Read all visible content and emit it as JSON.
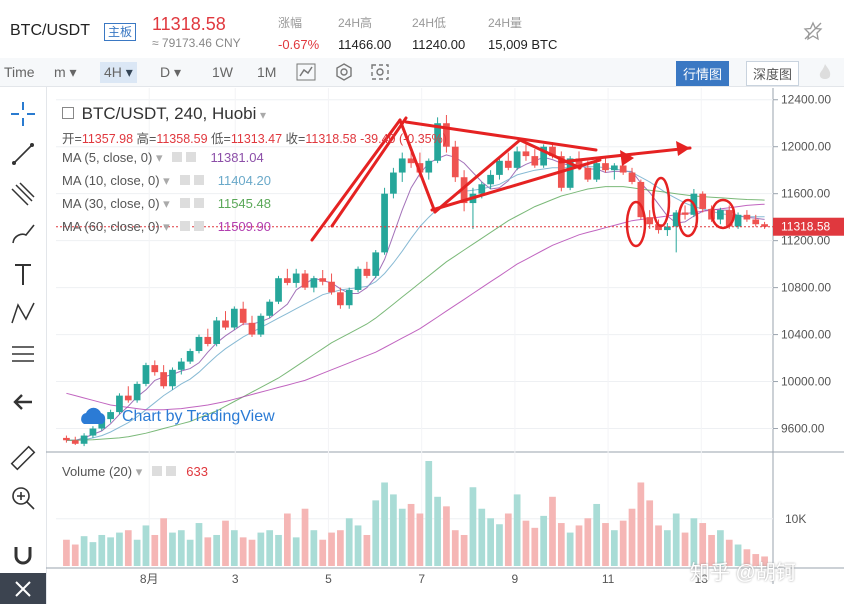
{
  "header": {
    "symbol": "BTC/USDT",
    "badge": "主板",
    "last_price": "11318.58",
    "cny": "≈ 79173.46 CNY",
    "stats": [
      {
        "label": "涨幅",
        "value": "-0.67%",
        "red": true
      },
      {
        "label": "24H高",
        "value": "11466.00"
      },
      {
        "label": "24H低",
        "value": "11240.00"
      },
      {
        "label": "24H量",
        "value": "15,009 BTC"
      }
    ]
  },
  "toolbar": {
    "time_label": "Time",
    "items": [
      "m",
      "4H",
      "D",
      "1W",
      "1M"
    ],
    "selected": "4H",
    "view_buttons": [
      "行情图",
      "深度图"
    ]
  },
  "chart_info": {
    "title": "BTC/USDT, 240, Huobi",
    "ohlc_labels": [
      "开=",
      "高=",
      "低=",
      "收="
    ],
    "ohlc_values": [
      "11357.98",
      "11358.59",
      "11313.47",
      "11318.58"
    ],
    "change": "-39.40 (-0.35%)",
    "ma": [
      {
        "label": "MA (5, close, 0)",
        "value": "11381.04",
        "color": "#8c4fa8"
      },
      {
        "label": "MA (10, close, 0)",
        "value": "11404.20",
        "color": "#6aa9c9"
      },
      {
        "label": "MA (30, close, 0)",
        "value": "11545.48",
        "color": "#5aa858"
      },
      {
        "label": "MA (60, close, 0)",
        "value": "11509.90",
        "color": "#b23fb0"
      }
    ],
    "volume_label": "Volume (20)",
    "volume_value": "633",
    "watermark": "Chart by TradingView",
    "zhihu": "知乎 @胡钶"
  },
  "chart_data": {
    "type": "candlestick",
    "price_axis": {
      "ticks": [
        "12400.00",
        "12000.00",
        "11600.00",
        "11200.00",
        "10800.00",
        "10400.00",
        "10000.00",
        "9600.00"
      ],
      "range": [
        9400,
        12500
      ]
    },
    "volume_axis": {
      "ticks": [
        "10K"
      ]
    },
    "x_labels": [
      "8月",
      "3",
      "5",
      "7",
      "9",
      "11",
      "13"
    ],
    "last_price_label": "11318.58",
    "colors": {
      "up": "#26a69a",
      "down": "#ef5350",
      "annotation": "#e52222"
    },
    "candles": [
      [
        9520,
        9540,
        9480,
        9500
      ],
      [
        9500,
        9530,
        9460,
        9470
      ],
      [
        9470,
        9560,
        9450,
        9540
      ],
      [
        9540,
        9620,
        9520,
        9600
      ],
      [
        9600,
        9700,
        9580,
        9680
      ],
      [
        9680,
        9760,
        9650,
        9740
      ],
      [
        9740,
        9900,
        9720,
        9880
      ],
      [
        9880,
        9960,
        9820,
        9840
      ],
      [
        9840,
        10000,
        9820,
        9980
      ],
      [
        9980,
        10160,
        9960,
        10140
      ],
      [
        10140,
        10180,
        10050,
        10080
      ],
      [
        10080,
        10140,
        9940,
        9960
      ],
      [
        9960,
        10120,
        9930,
        10100
      ],
      [
        10100,
        10200,
        10060,
        10170
      ],
      [
        10170,
        10280,
        10150,
        10260
      ],
      [
        10260,
        10400,
        10240,
        10380
      ],
      [
        10380,
        10450,
        10300,
        10320
      ],
      [
        10320,
        10550,
        10300,
        10520
      ],
      [
        10520,
        10600,
        10440,
        10460
      ],
      [
        10460,
        10640,
        10440,
        10620
      ],
      [
        10620,
        10680,
        10480,
        10500
      ],
      [
        10500,
        10560,
        10380,
        10400
      ],
      [
        10400,
        10580,
        10380,
        10560
      ],
      [
        10560,
        10700,
        10540,
        10680
      ],
      [
        10680,
        10900,
        10660,
        10880
      ],
      [
        10880,
        10960,
        10820,
        10840
      ],
      [
        10840,
        10960,
        10800,
        10920
      ],
      [
        10920,
        10950,
        10780,
        10800
      ],
      [
        10800,
        10900,
        10760,
        10880
      ],
      [
        10880,
        10950,
        10820,
        10850
      ],
      [
        10850,
        10920,
        10740,
        10760
      ],
      [
        10760,
        10800,
        10620,
        10650
      ],
      [
        10650,
        10800,
        10620,
        10780
      ],
      [
        10780,
        10980,
        10760,
        10960
      ],
      [
        10960,
        11020,
        10880,
        10900
      ],
      [
        10900,
        11120,
        10880,
        11100
      ],
      [
        11100,
        11650,
        11080,
        11600
      ],
      [
        11600,
        11820,
        11560,
        11780
      ],
      [
        11780,
        11950,
        11700,
        11900
      ],
      [
        11900,
        11960,
        11820,
        11860
      ],
      [
        11860,
        11950,
        11740,
        11780
      ],
      [
        11780,
        11900,
        11720,
        11880
      ],
      [
        11880,
        12250,
        11860,
        12200
      ],
      [
        12200,
        12270,
        11950,
        12000
      ],
      [
        12000,
        12050,
        11700,
        11740
      ],
      [
        11740,
        11800,
        11450,
        11520
      ],
      [
        11520,
        11650,
        11300,
        11600
      ],
      [
        11600,
        11700,
        11560,
        11680
      ],
      [
        11680,
        11800,
        11640,
        11760
      ],
      [
        11760,
        11900,
        11720,
        11880
      ],
      [
        11880,
        11950,
        11800,
        11820
      ],
      [
        11820,
        12000,
        11800,
        11960
      ],
      [
        11960,
        12020,
        11880,
        11920
      ],
      [
        11920,
        11980,
        11820,
        11840
      ],
      [
        11840,
        12020,
        11820,
        12000
      ],
      [
        12000,
        12040,
        11900,
        11920
      ],
      [
        11920,
        11960,
        11620,
        11650
      ],
      [
        11650,
        11920,
        11630,
        11900
      ],
      [
        11900,
        11960,
        11800,
        11820
      ],
      [
        11820,
        11880,
        11700,
        11720
      ],
      [
        11720,
        11880,
        11700,
        11860
      ],
      [
        11860,
        11900,
        11780,
        11800
      ],
      [
        11800,
        11860,
        11720,
        11840
      ],
      [
        11840,
        11880,
        11760,
        11780
      ],
      [
        11780,
        11820,
        11680,
        11700
      ],
      [
        11700,
        11720,
        11380,
        11400
      ],
      [
        11400,
        11460,
        11300,
        11340
      ],
      [
        11340,
        11380,
        11260,
        11290
      ],
      [
        11290,
        11350,
        11240,
        11320
      ],
      [
        11320,
        11460,
        11100,
        11440
      ],
      [
        11440,
        11500,
        11380,
        11420
      ],
      [
        11420,
        11640,
        11400,
        11600
      ],
      [
        11600,
        11620,
        11440,
        11470
      ],
      [
        11470,
        11500,
        11360,
        11380
      ],
      [
        11380,
        11480,
        11340,
        11460
      ],
      [
        11460,
        11500,
        11300,
        11320
      ],
      [
        11320,
        11440,
        11300,
        11420
      ],
      [
        11420,
        11460,
        11360,
        11380
      ],
      [
        11380,
        11420,
        11320,
        11340
      ],
      [
        11340,
        11360,
        11300,
        11318
      ]
    ],
    "volumes": [
      22,
      18,
      25,
      20,
      26,
      24,
      28,
      30,
      22,
      34,
      26,
      40,
      28,
      30,
      22,
      36,
      24,
      26,
      38,
      30,
      24,
      22,
      28,
      30,
      26,
      44,
      24,
      48,
      30,
      22,
      28,
      30,
      40,
      34,
      26,
      55,
      70,
      60,
      48,
      52,
      44,
      88,
      58,
      50,
      30,
      26,
      66,
      48,
      40,
      35,
      44,
      60,
      38,
      32,
      42,
      58,
      36,
      28,
      34,
      40,
      52,
      36,
      30,
      38,
      48,
      70,
      55,
      34,
      30,
      44,
      28,
      40,
      36,
      26,
      30,
      22,
      18,
      14,
      10,
      8
    ],
    "ma_series": [
      {
        "name": "MA (5, close, 0)",
        "color": "#8c4fa8",
        "values": [
          9500,
          9500,
          9520,
          9550,
          9580,
          9640,
          9720,
          9790,
          9870,
          9930,
          10010,
          10040,
          10060,
          10090,
          10110,
          10160,
          10250,
          10330,
          10390,
          10440,
          10490,
          10490,
          10510,
          10540,
          10600,
          10660,
          10780,
          10830,
          10880,
          10860,
          10840,
          10790,
          10750,
          10750,
          10800,
          10890,
          11040,
          11250,
          11460,
          11650,
          11770,
          11860,
          11900,
          11930,
          11910,
          11860,
          11780,
          11700,
          11640,
          11650,
          11710,
          11810,
          11850,
          11880,
          11910,
          11890,
          11860,
          11840,
          11850,
          11810,
          11810,
          11780,
          11790,
          11790,
          11790,
          11690,
          11610,
          11510,
          11410,
          11350,
          11360,
          11410,
          11450,
          11470,
          11460,
          11460,
          11410,
          11400,
          11390,
          11381
        ]
      },
      {
        "name": "MA (10, close, 0)",
        "color": "#6aa9c9",
        "values": [
          9500,
          9500,
          9505,
          9520,
          9540,
          9570,
          9610,
          9650,
          9700,
          9760,
          9820,
          9880,
          9930,
          9980,
          10020,
          10080,
          10150,
          10220,
          10280,
          10330,
          10380,
          10420,
          10460,
          10500,
          10540,
          10580,
          10620,
          10660,
          10700,
          10740,
          10760,
          10780,
          10790,
          10800,
          10810,
          10850,
          10920,
          11010,
          11110,
          11220,
          11320,
          11400,
          11470,
          11540,
          11590,
          11620,
          11630,
          11640,
          11660,
          11680,
          11720,
          11760,
          11780,
          11800,
          11810,
          11820,
          11820,
          11820,
          11830,
          11830,
          11830,
          11820,
          11810,
          11800,
          11780,
          11740,
          11700,
          11650,
          11600,
          11560,
          11520,
          11490,
          11470,
          11450,
          11430,
          11420,
          11410,
          11405,
          11404,
          11404
        ]
      },
      {
        "name": "MA (30, close, 0)",
        "color": "#5aa858",
        "values": [
          9500,
          9500,
          9502,
          9505,
          9510,
          9515,
          9520,
          9530,
          9545,
          9560,
          9580,
          9600,
          9620,
          9640,
          9660,
          9690,
          9720,
          9750,
          9790,
          9830,
          9870,
          9910,
          9950,
          9990,
          10030,
          10080,
          10130,
          10180,
          10230,
          10280,
          10330,
          10370,
          10410,
          10450,
          10490,
          10540,
          10600,
          10660,
          10720,
          10780,
          10840,
          10900,
          10960,
          11020,
          11070,
          11120,
          11170,
          11220,
          11270,
          11320,
          11370,
          11410,
          11450,
          11490,
          11520,
          11550,
          11580,
          11600,
          11620,
          11640,
          11650,
          11660,
          11660,
          11660,
          11650,
          11640,
          11630,
          11620,
          11610,
          11600,
          11590,
          11580,
          11575,
          11570,
          11565,
          11560,
          11555,
          11550,
          11548,
          11545
        ]
      },
      {
        "name": "MA (60, close, 0)",
        "color": "#b23fb0",
        "values": [
          9900,
          9880,
          9860,
          9840,
          9820,
          9800,
          9790,
          9780,
          9770,
          9760,
          9760,
          9760,
          9765,
          9770,
          9780,
          9790,
          9800,
          9815,
          9830,
          9850,
          9870,
          9890,
          9910,
          9930,
          9950,
          9970,
          9990,
          10010,
          10040,
          10070,
          10100,
          10130,
          10160,
          10190,
          10220,
          10250,
          10290,
          10330,
          10370,
          10410,
          10450,
          10500,
          10550,
          10600,
          10650,
          10700,
          10750,
          10800,
          10850,
          10900,
          10950,
          11000,
          11040,
          11080,
          11120,
          11160,
          11190,
          11220,
          11250,
          11270,
          11290,
          11310,
          11330,
          11350,
          11370,
          11380,
          11390,
          11400,
          11410,
          11420,
          11430,
          11440,
          11450,
          11460,
          11470,
          11480,
          11490,
          11500,
          11505,
          11510
        ]
      }
    ]
  }
}
